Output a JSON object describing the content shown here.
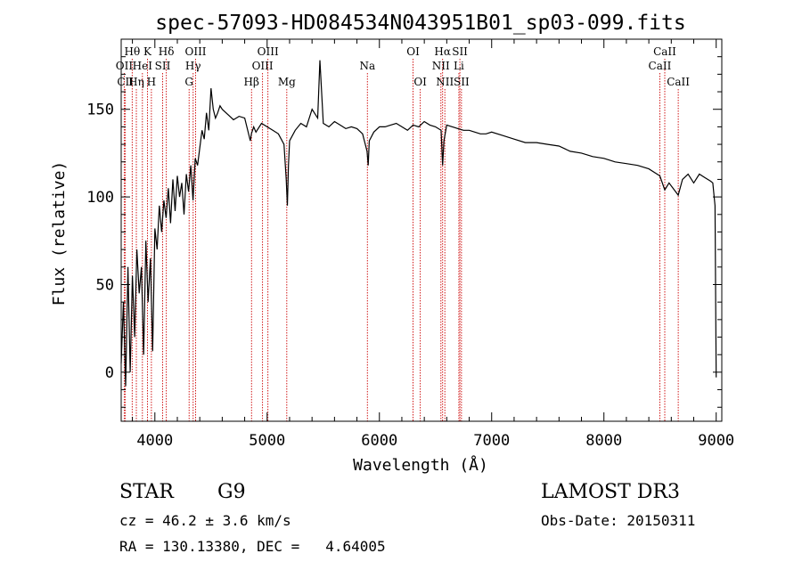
{
  "chart_data": {
    "type": "line",
    "title": "spec-57093-HD084534N043951B01_sp03-099.fits",
    "xlabel": "Wavelength (Å)",
    "ylabel": "Flux (relative)",
    "xlim": [
      3700,
      9050
    ],
    "ylim": [
      -28,
      190
    ],
    "xticks": [
      4000,
      5000,
      6000,
      7000,
      8000,
      9000
    ],
    "yticks": [
      0,
      50,
      100,
      150
    ],
    "grid": false,
    "series": [
      {
        "name": "spectrum",
        "x": [
          3700,
          3720,
          3740,
          3760,
          3780,
          3800,
          3820,
          3840,
          3860,
          3880,
          3900,
          3920,
          3940,
          3960,
          3980,
          4000,
          4020,
          4040,
          4060,
          4080,
          4100,
          4120,
          4140,
          4160,
          4180,
          4200,
          4220,
          4240,
          4260,
          4280,
          4300,
          4320,
          4340,
          4360,
          4380,
          4400,
          4420,
          4440,
          4460,
          4480,
          4500,
          4520,
          4540,
          4560,
          4580,
          4600,
          4650,
          4700,
          4750,
          4800,
          4850,
          4860,
          4880,
          4900,
          4950,
          5000,
          5050,
          5100,
          5150,
          5170,
          5180,
          5190,
          5200,
          5250,
          5300,
          5350,
          5400,
          5450,
          5470,
          5500,
          5550,
          5600,
          5650,
          5700,
          5750,
          5800,
          5850,
          5890,
          5900,
          5910,
          5950,
          6000,
          6050,
          6100,
          6150,
          6200,
          6250,
          6300,
          6350,
          6400,
          6450,
          6500,
          6550,
          6563,
          6575,
          6600,
          6650,
          6700,
          6750,
          6800,
          6850,
          6900,
          6950,
          7000,
          7100,
          7200,
          7300,
          7400,
          7500,
          7600,
          7700,
          7800,
          7900,
          8000,
          8100,
          8200,
          8300,
          8400,
          8498,
          8542,
          8580,
          8662,
          8700,
          8750,
          8800,
          8850,
          8900,
          8950,
          8970,
          8990,
          9000
        ],
        "values": [
          5,
          40,
          -8,
          60,
          0,
          55,
          20,
          70,
          45,
          60,
          10,
          75,
          40,
          65,
          12,
          82,
          70,
          95,
          80,
          98,
          88,
          105,
          85,
          110,
          92,
          112,
          100,
          108,
          90,
          113,
          103,
          118,
          98,
          122,
          118,
          128,
          138,
          133,
          148,
          138,
          162,
          150,
          145,
          148,
          152,
          150,
          147,
          144,
          146,
          145,
          132,
          136,
          140,
          137,
          142,
          140,
          138,
          136,
          130,
          110,
          95,
          118,
          132,
          138,
          142,
          140,
          150,
          145,
          178,
          142,
          140,
          143,
          141,
          139,
          140,
          139,
          136,
          126,
          118,
          132,
          137,
          140,
          140,
          141,
          142,
          140,
          138,
          141,
          140,
          143,
          141,
          140,
          138,
          118,
          132,
          141,
          140,
          139,
          138,
          138,
          137,
          136,
          136,
          137,
          135,
          133,
          131,
          131,
          130,
          129,
          126,
          125,
          123,
          122,
          120,
          119,
          118,
          116,
          112,
          104,
          108,
          101,
          110,
          113,
          108,
          113,
          111,
          109,
          108,
          95,
          -3
        ]
      }
    ],
    "line_markers": [
      {
        "label": "Hθ",
        "wave": 3798,
        "row": 1
      },
      {
        "label": "OII",
        "wave": 3727,
        "row": 2
      },
      {
        "label": "CII",
        "wave": 3737,
        "row": 3
      },
      {
        "label": "K",
        "wave": 3934,
        "row": 1
      },
      {
        "label": "HeI",
        "wave": 3889,
        "row": 2
      },
      {
        "label": "Hη",
        "wave": 3835,
        "row": 3
      },
      {
        "label": "H",
        "wave": 3969,
        "row": 3
      },
      {
        "label": "Hδ",
        "wave": 4102,
        "row": 1
      },
      {
        "label": "SII",
        "wave": 4069,
        "row": 2
      },
      {
        "label": "OIII",
        "wave": 4363,
        "row": 1
      },
      {
        "label": "Hγ",
        "wave": 4341,
        "row": 2
      },
      {
        "label": "G",
        "wave": 4305,
        "row": 3
      },
      {
        "label": "OIII",
        "wave": 5007,
        "row": 1
      },
      {
        "label": "OIII",
        "wave": 4959,
        "row": 2
      },
      {
        "label": "Hβ",
        "wave": 4861,
        "row": 3
      },
      {
        "label": "Mg",
        "wave": 5175,
        "row": 3
      },
      {
        "label": "Na",
        "wave": 5893,
        "row": 2
      },
      {
        "label": "OI",
        "wave": 6300,
        "row": 1
      },
      {
        "label": "OI",
        "wave": 6364,
        "row": 3
      },
      {
        "label": "Hα",
        "wave": 6563,
        "row": 1
      },
      {
        "label": "NII",
        "wave": 6548,
        "row": 2
      },
      {
        "label": "NII",
        "wave": 6583,
        "row": 3
      },
      {
        "label": "SII",
        "wave": 6717,
        "row": 1
      },
      {
        "label": "Li",
        "wave": 6708,
        "row": 2
      },
      {
        "label": "SII",
        "wave": 6731,
        "row": 3
      },
      {
        "label": "CaII",
        "wave": 8542,
        "row": 1
      },
      {
        "label": "CaII",
        "wave": 8498,
        "row": 2
      },
      {
        "label": "CaII",
        "wave": 8662,
        "row": 3
      }
    ],
    "marker_color": "#cc0000"
  },
  "info": {
    "object_class": "STAR",
    "subclass": "G9",
    "survey": "LAMOST DR3",
    "redshift": "cz = 46.2 ± 3.6 km/s",
    "obs_date": "Obs-Date: 20150311",
    "coords": "RA = 130.13380, DEC =   4.64005"
  }
}
